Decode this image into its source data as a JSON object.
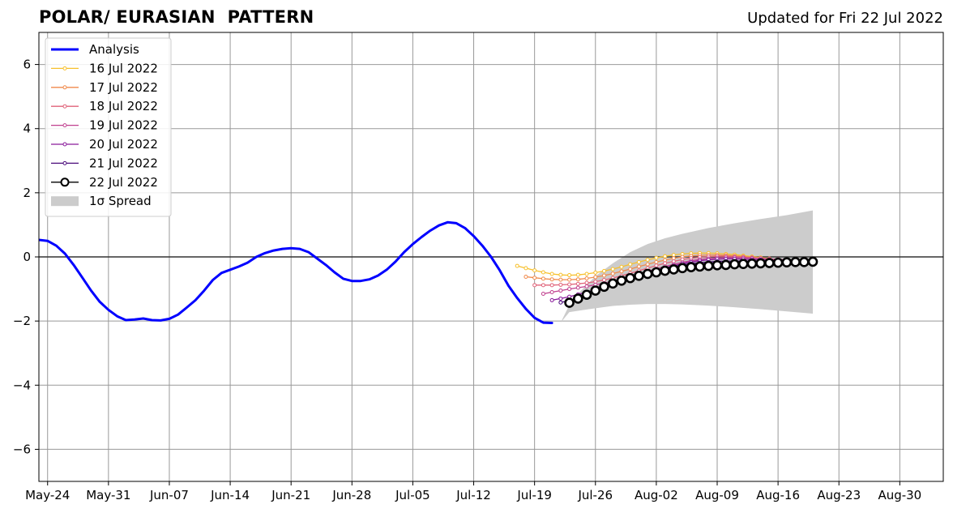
{
  "header": {
    "title": "POLAR/ EURASIAN  PATTERN",
    "updated": "Updated for Fri 22 Jul 2022"
  },
  "chart_data": {
    "type": "line",
    "title": "POLAR/ EURASIAN  PATTERN",
    "subtitle": "Updated for Fri 22 Jul 2022",
    "xlabel": "",
    "ylabel": "",
    "ylim": [
      -7,
      7
    ],
    "xlim": [
      "2022-05-23",
      "2022-09-04"
    ],
    "grid": true,
    "legend_position": "top-left",
    "x_ticks": [
      "May-24",
      "May-31",
      "Jun-07",
      "Jun-14",
      "Jun-21",
      "Jun-28",
      "Jul-05",
      "Jul-12",
      "Jul-19",
      "Jul-26",
      "Aug-02",
      "Aug-09",
      "Aug-16",
      "Aug-23",
      "Aug-30"
    ],
    "x_tick_dates": [
      "2022-05-24",
      "2022-05-31",
      "2022-06-07",
      "2022-06-14",
      "2022-06-21",
      "2022-06-28",
      "2022-07-05",
      "2022-07-12",
      "2022-07-19",
      "2022-07-26",
      "2022-08-02",
      "2022-08-09",
      "2022-08-16",
      "2022-08-23",
      "2022-08-30"
    ],
    "y_ticks": [
      -6,
      -4,
      -2,
      0,
      2,
      4,
      6
    ],
    "y_tick_labels": [
      "−6",
      "−4",
      "−2",
      "0",
      "2",
      "4",
      "6"
    ],
    "series": [
      {
        "name": "Analysis",
        "color": "#0000ff",
        "x": [
          "2022-05-23",
          "2022-05-24",
          "2022-05-25",
          "2022-05-26",
          "2022-05-27",
          "2022-05-28",
          "2022-05-29",
          "2022-05-30",
          "2022-05-31",
          "2022-06-01",
          "2022-06-02",
          "2022-06-03",
          "2022-06-04",
          "2022-06-05",
          "2022-06-06",
          "2022-06-07",
          "2022-06-08",
          "2022-06-09",
          "2022-06-10",
          "2022-06-11",
          "2022-06-12",
          "2022-06-13",
          "2022-06-14",
          "2022-06-15",
          "2022-06-16",
          "2022-06-17",
          "2022-06-18",
          "2022-06-19",
          "2022-06-20",
          "2022-06-21",
          "2022-06-22",
          "2022-06-23",
          "2022-06-24",
          "2022-06-25",
          "2022-06-26",
          "2022-06-27",
          "2022-06-28",
          "2022-06-29",
          "2022-06-30",
          "2022-07-01",
          "2022-07-02",
          "2022-07-03",
          "2022-07-04",
          "2022-07-05",
          "2022-07-06",
          "2022-07-07",
          "2022-07-08",
          "2022-07-09",
          "2022-07-10",
          "2022-07-11",
          "2022-07-12",
          "2022-07-13",
          "2022-07-14",
          "2022-07-15",
          "2022-07-16",
          "2022-07-17",
          "2022-07-18",
          "2022-07-19",
          "2022-07-20",
          "2022-07-21",
          "2022-07-22"
        ],
        "y": [
          0.53,
          0.5,
          0.35,
          0.1,
          -0.25,
          -0.65,
          -1.05,
          -1.4,
          -1.65,
          -1.85,
          -1.97,
          -1.95,
          -1.92,
          -1.97,
          -1.98,
          -1.93,
          -1.8,
          -1.58,
          -1.35,
          -1.05,
          -0.72,
          -0.5,
          -0.4,
          -0.3,
          -0.18,
          0.0,
          0.12,
          0.2,
          0.25,
          0.27,
          0.25,
          0.15,
          -0.05,
          -0.25,
          -0.48,
          -0.68,
          -0.75,
          -0.75,
          -0.7,
          -0.58,
          -0.4,
          -0.15,
          0.15,
          0.4,
          0.62,
          0.82,
          0.98,
          1.08,
          1.05,
          0.9,
          0.65,
          0.35,
          0.0,
          -0.42,
          -0.9,
          -1.28,
          -1.62,
          -1.9,
          -2.05,
          -2.06,
          null
        ]
      },
      {
        "name": "16 Jul 2022",
        "color": "#f7c02c",
        "x": [
          "2022-07-17",
          "2022-07-18",
          "2022-07-19",
          "2022-07-20",
          "2022-07-21",
          "2022-07-22",
          "2022-07-23",
          "2022-07-24",
          "2022-07-25",
          "2022-07-26",
          "2022-07-27",
          "2022-07-28",
          "2022-07-29",
          "2022-07-30",
          "2022-07-31",
          "2022-08-01",
          "2022-08-02",
          "2022-08-03",
          "2022-08-04",
          "2022-08-05",
          "2022-08-06",
          "2022-08-07",
          "2022-08-08",
          "2022-08-09",
          "2022-08-10",
          "2022-08-11",
          "2022-08-12",
          "2022-08-13",
          "2022-08-14",
          "2022-08-15"
        ],
        "y": [
          -0.28,
          -0.35,
          -0.42,
          -0.48,
          -0.53,
          -0.56,
          -0.57,
          -0.56,
          -0.53,
          -0.49,
          -0.44,
          -0.38,
          -0.31,
          -0.23,
          -0.16,
          -0.09,
          -0.03,
          0.02,
          0.06,
          0.09,
          0.11,
          0.12,
          0.12,
          0.11,
          0.09,
          0.07,
          0.04,
          0.01,
          -0.02,
          -0.05
        ]
      },
      {
        "name": "17 Jul 2022",
        "color": "#f08a4b",
        "x": [
          "2022-07-18",
          "2022-07-19",
          "2022-07-20",
          "2022-07-21",
          "2022-07-22",
          "2022-07-23",
          "2022-07-24",
          "2022-07-25",
          "2022-07-26",
          "2022-07-27",
          "2022-07-28",
          "2022-07-29",
          "2022-07-30",
          "2022-07-31",
          "2022-08-01",
          "2022-08-02",
          "2022-08-03",
          "2022-08-04",
          "2022-08-05",
          "2022-08-06",
          "2022-08-07",
          "2022-08-08",
          "2022-08-09",
          "2022-08-10",
          "2022-08-11",
          "2022-08-12",
          "2022-08-13",
          "2022-08-14",
          "2022-08-15",
          "2022-08-16"
        ],
        "y": [
          -0.62,
          -0.65,
          -0.68,
          -0.7,
          -0.71,
          -0.71,
          -0.7,
          -0.67,
          -0.63,
          -0.58,
          -0.52,
          -0.45,
          -0.38,
          -0.3,
          -0.23,
          -0.16,
          -0.1,
          -0.04,
          0.0,
          0.03,
          0.05,
          0.06,
          0.06,
          0.05,
          0.03,
          0.01,
          -0.02,
          -0.04,
          -0.06,
          -0.08
        ]
      },
      {
        "name": "18 Jul 2022",
        "color": "#e0637a",
        "x": [
          "2022-07-19",
          "2022-07-20",
          "2022-07-21",
          "2022-07-22",
          "2022-07-23",
          "2022-07-24",
          "2022-07-25",
          "2022-07-26",
          "2022-07-27",
          "2022-07-28",
          "2022-07-29",
          "2022-07-30",
          "2022-07-31",
          "2022-08-01",
          "2022-08-02",
          "2022-08-03",
          "2022-08-04",
          "2022-08-05",
          "2022-08-06",
          "2022-08-07",
          "2022-08-08",
          "2022-08-09",
          "2022-08-10",
          "2022-08-11",
          "2022-08-12",
          "2022-08-13",
          "2022-08-14",
          "2022-08-15",
          "2022-08-16",
          "2022-08-17"
        ],
        "y": [
          -0.88,
          -0.88,
          -0.88,
          -0.87,
          -0.86,
          -0.84,
          -0.81,
          -0.77,
          -0.72,
          -0.66,
          -0.59,
          -0.51,
          -0.43,
          -0.35,
          -0.27,
          -0.2,
          -0.14,
          -0.08,
          -0.04,
          -0.01,
          0.01,
          0.02,
          0.02,
          0.01,
          0.0,
          -0.02,
          -0.04,
          -0.06,
          -0.08,
          -0.09
        ]
      },
      {
        "name": "19 Jul 2022",
        "color": "#c0408f",
        "x": [
          "2022-07-20",
          "2022-07-21",
          "2022-07-22",
          "2022-07-23",
          "2022-07-24",
          "2022-07-25",
          "2022-07-26",
          "2022-07-27",
          "2022-07-28",
          "2022-07-29",
          "2022-07-30",
          "2022-07-31",
          "2022-08-01",
          "2022-08-02",
          "2022-08-03",
          "2022-08-04",
          "2022-08-05",
          "2022-08-06",
          "2022-08-07",
          "2022-08-08",
          "2022-08-09",
          "2022-08-10",
          "2022-08-11",
          "2022-08-12",
          "2022-08-13",
          "2022-08-14",
          "2022-08-15",
          "2022-08-16",
          "2022-08-17",
          "2022-08-18"
        ],
        "y": [
          -1.15,
          -1.1,
          -1.05,
          -1.0,
          -0.96,
          -0.92,
          -0.87,
          -0.82,
          -0.76,
          -0.69,
          -0.61,
          -0.53,
          -0.45,
          -0.37,
          -0.3,
          -0.23,
          -0.17,
          -0.12,
          -0.08,
          -0.05,
          -0.03,
          -0.02,
          -0.02,
          -0.03,
          -0.04,
          -0.05,
          -0.07,
          -0.08,
          -0.09,
          -0.1
        ]
      },
      {
        "name": "20 Jul 2022",
        "color": "#8a1a9b",
        "x": [
          "2022-07-21",
          "2022-07-22",
          "2022-07-23",
          "2022-07-24",
          "2022-07-25",
          "2022-07-26",
          "2022-07-27",
          "2022-07-28",
          "2022-07-29",
          "2022-07-30",
          "2022-07-31",
          "2022-08-01",
          "2022-08-02",
          "2022-08-03",
          "2022-08-04",
          "2022-08-05",
          "2022-08-06",
          "2022-08-07",
          "2022-08-08",
          "2022-08-09",
          "2022-08-10",
          "2022-08-11",
          "2022-08-12",
          "2022-08-13",
          "2022-08-14",
          "2022-08-15",
          "2022-08-16",
          "2022-08-17",
          "2022-08-18",
          "2022-08-19"
        ],
        "y": [
          -1.35,
          -1.3,
          -1.24,
          -1.17,
          -1.1,
          -1.02,
          -0.94,
          -0.86,
          -0.77,
          -0.68,
          -0.59,
          -0.5,
          -0.42,
          -0.34,
          -0.27,
          -0.21,
          -0.16,
          -0.12,
          -0.09,
          -0.07,
          -0.06,
          -0.06,
          -0.07,
          -0.08,
          -0.09,
          -0.1,
          -0.11,
          -0.12,
          -0.12,
          -0.12
        ]
      },
      {
        "name": "21 Jul 2022",
        "color": "#4a0a7a",
        "x": [
          "2022-07-22",
          "2022-07-23",
          "2022-07-24",
          "2022-07-25",
          "2022-07-26",
          "2022-07-27",
          "2022-07-28",
          "2022-07-29",
          "2022-07-30",
          "2022-07-31",
          "2022-08-01",
          "2022-08-02",
          "2022-08-03",
          "2022-08-04",
          "2022-08-05",
          "2022-08-06",
          "2022-08-07",
          "2022-08-08",
          "2022-08-09",
          "2022-08-10",
          "2022-08-11",
          "2022-08-12",
          "2022-08-13",
          "2022-08-14",
          "2022-08-15",
          "2022-08-16",
          "2022-08-17",
          "2022-08-18",
          "2022-08-19",
          "2022-08-20"
        ],
        "y": [
          -1.42,
          -1.36,
          -1.28,
          -1.19,
          -1.09,
          -0.99,
          -0.89,
          -0.79,
          -0.69,
          -0.6,
          -0.51,
          -0.43,
          -0.36,
          -0.3,
          -0.25,
          -0.21,
          -0.18,
          -0.16,
          -0.14,
          -0.13,
          -0.13,
          -0.13,
          -0.13,
          -0.13,
          -0.14,
          -0.14,
          -0.14,
          -0.14,
          -0.14,
          -0.14
        ]
      },
      {
        "name": "22 Jul 2022",
        "color": "#000000",
        "x": [
          "2022-07-23",
          "2022-07-24",
          "2022-07-25",
          "2022-07-26",
          "2022-07-27",
          "2022-07-28",
          "2022-07-29",
          "2022-07-30",
          "2022-07-31",
          "2022-08-01",
          "2022-08-02",
          "2022-08-03",
          "2022-08-04",
          "2022-08-05",
          "2022-08-06",
          "2022-08-07",
          "2022-08-08",
          "2022-08-09",
          "2022-08-10",
          "2022-08-11",
          "2022-08-12",
          "2022-08-13",
          "2022-08-14",
          "2022-08-15",
          "2022-08-16",
          "2022-08-17",
          "2022-08-18",
          "2022-08-19",
          "2022-08-20"
        ],
        "y": [
          -1.43,
          -1.3,
          -1.18,
          -1.05,
          -0.93,
          -0.83,
          -0.74,
          -0.66,
          -0.59,
          -0.53,
          -0.48,
          -0.43,
          -0.39,
          -0.35,
          -0.32,
          -0.3,
          -0.28,
          -0.26,
          -0.25,
          -0.23,
          -0.22,
          -0.21,
          -0.2,
          -0.19,
          -0.18,
          -0.17,
          -0.16,
          -0.16,
          -0.15
        ]
      }
    ],
    "spread": {
      "name": "1σ Spread",
      "color": "#cccccc",
      "x": [
        "2022-07-22",
        "2022-07-23",
        "2022-07-24",
        "2022-07-26",
        "2022-07-28",
        "2022-07-30",
        "2022-08-01",
        "2022-08-03",
        "2022-08-05",
        "2022-08-08",
        "2022-08-11",
        "2022-08-14",
        "2022-08-17",
        "2022-08-20"
      ],
      "upper": [
        -2.05,
        -1.5,
        -1.15,
        -0.6,
        -0.2,
        0.15,
        0.4,
        0.58,
        0.72,
        0.9,
        1.05,
        1.18,
        1.3,
        1.45
      ],
      "lower": [
        -2.05,
        -1.72,
        -1.68,
        -1.6,
        -1.53,
        -1.49,
        -1.47,
        -1.47,
        -1.48,
        -1.52,
        -1.57,
        -1.63,
        -1.7,
        -1.77
      ]
    }
  }
}
